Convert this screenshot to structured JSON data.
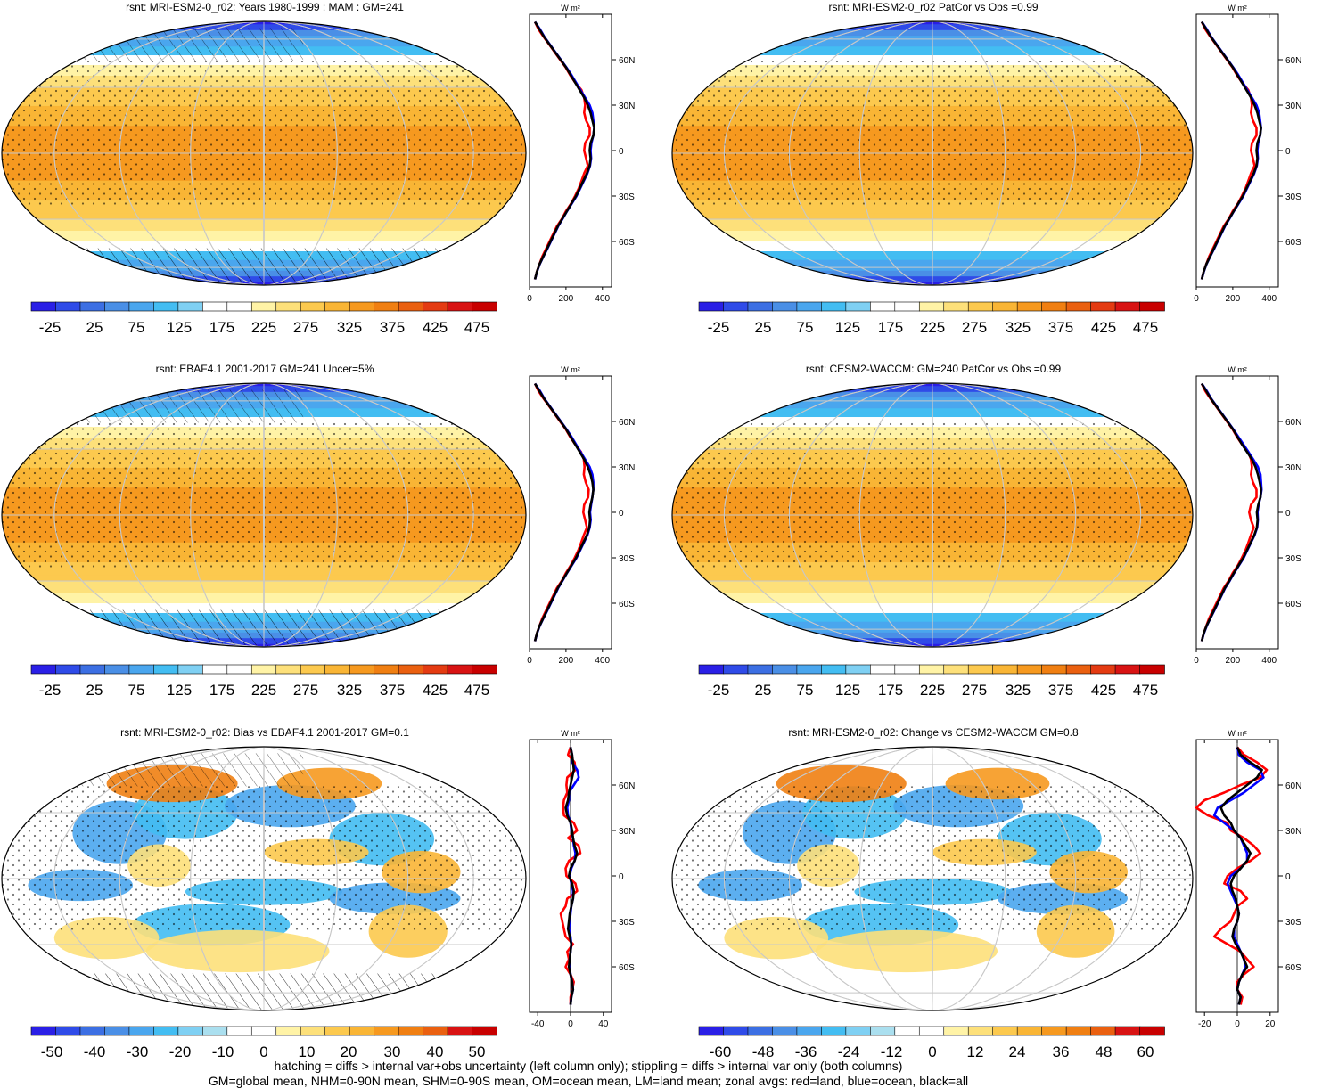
{
  "colors": {
    "clim_scale": [
      "#2a1fe6",
      "#2f4be8",
      "#3c6fe3",
      "#4a8fe6",
      "#4aa6ee",
      "#43bdf2",
      "#7fd0f3",
      "#ffffff",
      "#ffffff",
      "#fff3a6",
      "#fde07a",
      "#fcc94e",
      "#f9b535",
      "#f6991f",
      "#f07f12",
      "#ea6010",
      "#e43b12",
      "#d81313",
      "#c80000"
    ],
    "diff_scale": [
      "#2a1fe6",
      "#2f4be8",
      "#3c6fe3",
      "#4a8fe6",
      "#4aa6ee",
      "#43bdf2",
      "#7fd0f3",
      "#aadfef",
      "#ffffff",
      "#ffffff",
      "#fff3a6",
      "#fde07a",
      "#fcc94e",
      "#f9b535",
      "#f6991f",
      "#f07f12",
      "#ea6010",
      "#d81313",
      "#c80000"
    ],
    "land": "#ff0000",
    "ocean": "#0000ff",
    "all": "#000000"
  },
  "chart_data": [
    {
      "type": "heatmap",
      "id": "p1",
      "title": "rsnt: MRI-ESM2-0_r02: Years 1980-1999 : MAM : GM=241",
      "colorbar_labels": [
        "-25",
        "25",
        "75",
        "125",
        "175",
        "225",
        "275",
        "325",
        "375",
        "425",
        "475"
      ],
      "zonal": {
        "unit": "W m²",
        "xlim": [
          0,
          450
        ],
        "xticks": [
          "0",
          "200",
          "400"
        ],
        "ylim": [
          -90,
          90
        ],
        "yticks": [
          "60N",
          "30N",
          "0",
          "30S",
          "60S"
        ],
        "ytick_values": [
          60,
          30,
          0,
          -30,
          -60
        ],
        "lat": [
          85,
          80,
          75,
          70,
          65,
          60,
          55,
          50,
          45,
          40,
          35,
          30,
          25,
          20,
          15,
          10,
          5,
          0,
          -5,
          -10,
          -15,
          -20,
          -25,
          -30,
          -35,
          -40,
          -45,
          -50,
          -55,
          -60,
          -65,
          -70,
          -75,
          -80,
          -85
        ],
        "all": [
          30,
          55,
          80,
          110,
          140,
          170,
          200,
          225,
          250,
          275,
          300,
          320,
          335,
          345,
          355,
          350,
          335,
          330,
          335,
          330,
          315,
          295,
          275,
          255,
          230,
          205,
          180,
          155,
          135,
          115,
          95,
          75,
          55,
          40,
          30
        ],
        "land": [
          30,
          50,
          78,
          108,
          138,
          168,
          198,
          222,
          250,
          285,
          300,
          305,
          300,
          310,
          330,
          330,
          305,
          300,
          310,
          320,
          300,
          285,
          270,
          250,
          228,
          200,
          178,
          150,
          130,
          110,
          90,
          70,
          55,
          40,
          30
        ],
        "ocean": [
          30,
          58,
          82,
          112,
          142,
          172,
          202,
          230,
          255,
          280,
          305,
          330,
          345,
          350,
          355,
          350,
          340,
          335,
          338,
          332,
          318,
          298,
          278,
          258,
          232,
          206,
          182,
          157,
          137,
          117,
          97,
          76,
          56,
          41,
          30
        ]
      }
    },
    {
      "type": "heatmap",
      "id": "p2",
      "title": "rsnt: MRI-ESM2-0_r02 PatCor vs Obs =0.99",
      "colorbar_labels": [
        "-25",
        "25",
        "75",
        "125",
        "175",
        "225",
        "275",
        "325",
        "375",
        "425",
        "475"
      ],
      "zonal": {
        "unit": "W m²",
        "xlim": [
          0,
          450
        ],
        "xticks": [
          "0",
          "200",
          "400"
        ],
        "ylim": [
          -90,
          90
        ],
        "yticks": [
          "60N",
          "30N",
          "0",
          "30S",
          "60S"
        ],
        "ytick_values": [
          60,
          30,
          0,
          -30,
          -60
        ],
        "lat": [
          85,
          80,
          75,
          70,
          65,
          60,
          55,
          50,
          45,
          40,
          35,
          30,
          25,
          20,
          15,
          10,
          5,
          0,
          -5,
          -10,
          -15,
          -20,
          -25,
          -30,
          -35,
          -40,
          -45,
          -50,
          -55,
          -60,
          -65,
          -70,
          -75,
          -80,
          -85
        ],
        "all": [
          30,
          55,
          80,
          110,
          140,
          170,
          200,
          225,
          250,
          275,
          300,
          320,
          335,
          345,
          355,
          350,
          335,
          330,
          335,
          330,
          315,
          295,
          275,
          255,
          230,
          205,
          180,
          155,
          135,
          115,
          95,
          75,
          55,
          40,
          30
        ],
        "land": [
          30,
          50,
          78,
          108,
          138,
          168,
          198,
          222,
          250,
          285,
          300,
          305,
          300,
          310,
          330,
          330,
          305,
          300,
          310,
          320,
          300,
          285,
          270,
          250,
          228,
          200,
          178,
          150,
          130,
          110,
          90,
          70,
          55,
          40,
          30
        ],
        "ocean": [
          30,
          58,
          82,
          112,
          142,
          172,
          202,
          230,
          255,
          280,
          305,
          330,
          345,
          350,
          355,
          350,
          340,
          335,
          338,
          332,
          318,
          298,
          278,
          258,
          232,
          206,
          182,
          157,
          137,
          117,
          97,
          76,
          56,
          41,
          30
        ]
      }
    },
    {
      "type": "heatmap",
      "id": "p3",
      "title": "rsnt: EBAF4.1 2001-2017 GM=241 Uncer=5%",
      "colorbar_labels": [
        "-25",
        "25",
        "75",
        "125",
        "175",
        "225",
        "275",
        "325",
        "375",
        "425",
        "475"
      ],
      "zonal": {
        "unit": "W m²",
        "xlim": [
          0,
          450
        ],
        "xticks": [
          "0",
          "200",
          "400"
        ],
        "ylim": [
          -90,
          90
        ],
        "yticks": [
          "60N",
          "30N",
          "0",
          "30S",
          "60S"
        ],
        "ytick_values": [
          60,
          30,
          0,
          -30,
          -60
        ],
        "lat": [
          85,
          80,
          75,
          70,
          65,
          60,
          55,
          50,
          45,
          40,
          35,
          30,
          25,
          20,
          15,
          10,
          5,
          0,
          -5,
          -10,
          -15,
          -20,
          -25,
          -30,
          -35,
          -40,
          -45,
          -50,
          -55,
          -60,
          -65,
          -70,
          -75,
          -80,
          -85
        ],
        "all": [
          30,
          55,
          80,
          110,
          140,
          170,
          200,
          225,
          250,
          275,
          300,
          320,
          335,
          345,
          350,
          345,
          335,
          328,
          332,
          328,
          315,
          295,
          275,
          255,
          230,
          205,
          180,
          155,
          135,
          115,
          95,
          75,
          55,
          40,
          30
        ],
        "land": [
          30,
          50,
          78,
          108,
          138,
          168,
          198,
          222,
          250,
          282,
          298,
          302,
          298,
          308,
          325,
          322,
          300,
          295,
          305,
          315,
          298,
          283,
          268,
          248,
          226,
          200,
          178,
          150,
          130,
          110,
          90,
          70,
          55,
          40,
          30
        ],
        "ocean": [
          30,
          58,
          82,
          112,
          142,
          172,
          202,
          230,
          255,
          280,
          305,
          330,
          345,
          350,
          350,
          345,
          338,
          332,
          336,
          330,
          318,
          298,
          278,
          258,
          232,
          206,
          182,
          157,
          137,
          117,
          97,
          76,
          56,
          41,
          30
        ]
      }
    },
    {
      "type": "heatmap",
      "id": "p4",
      "title": "rsnt: CESM2-WACCM: GM=240 PatCor vs Obs =0.99",
      "colorbar_labels": [
        "-25",
        "25",
        "75",
        "125",
        "175",
        "225",
        "275",
        "325",
        "375",
        "425",
        "475"
      ],
      "zonal": {
        "unit": "W m²",
        "xlim": [
          0,
          450
        ],
        "xticks": [
          "0",
          "200",
          "400"
        ],
        "ylim": [
          -90,
          90
        ],
        "yticks": [
          "60N",
          "30N",
          "0",
          "30S",
          "60S"
        ],
        "ytick_values": [
          60,
          30,
          0,
          -30,
          -60
        ],
        "lat": [
          85,
          80,
          75,
          70,
          65,
          60,
          55,
          50,
          45,
          40,
          35,
          30,
          25,
          20,
          15,
          10,
          5,
          0,
          -5,
          -10,
          -15,
          -20,
          -25,
          -30,
          -35,
          -40,
          -45,
          -50,
          -55,
          -60,
          -65,
          -70,
          -75,
          -80,
          -85
        ],
        "all": [
          30,
          55,
          80,
          110,
          140,
          170,
          200,
          225,
          250,
          278,
          305,
          325,
          338,
          348,
          355,
          352,
          340,
          332,
          336,
          332,
          318,
          298,
          278,
          258,
          232,
          206,
          182,
          156,
          136,
          116,
          96,
          76,
          56,
          40,
          30
        ],
        "land": [
          30,
          50,
          78,
          108,
          138,
          168,
          198,
          222,
          250,
          285,
          300,
          305,
          300,
          310,
          330,
          330,
          300,
          290,
          300,
          315,
          300,
          285,
          270,
          250,
          228,
          200,
          178,
          150,
          130,
          110,
          90,
          70,
          55,
          40,
          30
        ],
        "ocean": [
          30,
          58,
          82,
          112,
          142,
          172,
          202,
          230,
          258,
          285,
          312,
          338,
          352,
          355,
          358,
          352,
          342,
          336,
          338,
          334,
          320,
          300,
          280,
          260,
          234,
          208,
          184,
          158,
          138,
          118,
          98,
          77,
          57,
          41,
          30
        ]
      }
    },
    {
      "type": "heatmap",
      "id": "p5",
      "title": "rsnt: MRI-ESM2-0_r02: Bias vs EBAF4.1 2001-2017 GM=0.1",
      "colorbar_labels": [
        "-50",
        "-40",
        "-30",
        "-20",
        "-10",
        "0",
        "10",
        "20",
        "30",
        "40",
        "50"
      ],
      "zonal": {
        "unit": "W m²",
        "xlim": [
          -50,
          50
        ],
        "xticks": [
          "-40",
          "0",
          "40"
        ],
        "ylim": [
          -90,
          90
        ],
        "yticks": [
          "60N",
          "30N",
          "0",
          "30S",
          "60S"
        ],
        "ytick_values": [
          60,
          30,
          0,
          -30,
          -60
        ],
        "lat": [
          85,
          80,
          75,
          70,
          65,
          60,
          55,
          50,
          45,
          40,
          35,
          30,
          25,
          20,
          15,
          10,
          5,
          0,
          -5,
          -10,
          -15,
          -20,
          -25,
          -30,
          -35,
          -40,
          -45,
          -50,
          -55,
          -60,
          -65,
          -70,
          -75,
          -80,
          -85
        ],
        "all": [
          0,
          2,
          3,
          4,
          2,
          0,
          -2,
          -3,
          -6,
          -4,
          0,
          2,
          3,
          5,
          8,
          5,
          0,
          -2,
          2,
          4,
          3,
          1,
          -1,
          -2,
          -3,
          -1,
          1,
          0,
          -1,
          -2,
          0,
          2,
          3,
          1,
          0
        ],
        "land": [
          0,
          -3,
          5,
          6,
          -4,
          -5,
          -4,
          -8,
          -9,
          -8,
          4,
          8,
          -3,
          10,
          12,
          -2,
          -6,
          -5,
          6,
          8,
          -4,
          -6,
          -12,
          -10,
          -8,
          -6,
          3,
          -4,
          -2,
          -6,
          0,
          4,
          2,
          0,
          0
        ],
        "ocean": [
          0,
          2,
          2,
          8,
          10,
          4,
          -2,
          -2,
          -4,
          -3,
          0,
          1,
          3,
          4,
          6,
          5,
          1,
          -1,
          1,
          3,
          3,
          1,
          0,
          -1,
          -2,
          0,
          1,
          0,
          -1,
          -1,
          0,
          2,
          3,
          1,
          0
        ]
      }
    },
    {
      "type": "heatmap",
      "id": "p6",
      "title": "rsnt: MRI-ESM2-0_r02: Change vs CESM2-WACCM GM=0.8",
      "colorbar_labels": [
        "-60",
        "-48",
        "-36",
        "-24",
        "-12",
        "0",
        "12",
        "24",
        "36",
        "48",
        "60"
      ],
      "zonal": {
        "unit": "W m²",
        "xlim": [
          -25,
          25
        ],
        "xticks": [
          "-20",
          "0",
          "20"
        ],
        "ylim": [
          -90,
          90
        ],
        "yticks": [
          "60N",
          "30N",
          "0",
          "30S",
          "60S"
        ],
        "ytick_values": [
          60,
          30,
          0,
          -30,
          -60
        ],
        "lat": [
          85,
          80,
          75,
          70,
          65,
          60,
          55,
          50,
          45,
          40,
          35,
          30,
          25,
          20,
          15,
          10,
          5,
          0,
          -5,
          -10,
          -15,
          -20,
          -25,
          -30,
          -35,
          -40,
          -45,
          -50,
          -55,
          -60,
          -65,
          -70,
          -75,
          -80,
          -85
        ],
        "all": [
          0,
          2,
          8,
          15,
          12,
          6,
          0,
          -6,
          -10,
          -8,
          -4,
          -2,
          2,
          5,
          8,
          6,
          2,
          -2,
          -4,
          -3,
          -1,
          0,
          1,
          0,
          -2,
          -3,
          -1,
          2,
          4,
          6,
          3,
          1,
          0,
          2,
          1
        ],
        "land": [
          0,
          4,
          12,
          18,
          14,
          2,
          -8,
          -20,
          -25,
          -18,
          -6,
          -4,
          4,
          10,
          14,
          8,
          0,
          -6,
          -8,
          2,
          6,
          0,
          -2,
          -4,
          -10,
          -14,
          -6,
          2,
          6,
          10,
          4,
          0,
          0,
          3,
          2
        ],
        "ocean": [
          0,
          1,
          6,
          14,
          16,
          10,
          4,
          -4,
          -12,
          -14,
          -8,
          -2,
          2,
          4,
          6,
          6,
          2,
          -4,
          -6,
          -4,
          -2,
          0,
          1,
          0,
          -2,
          -2,
          0,
          2,
          4,
          5,
          3,
          1,
          0,
          2,
          1
        ]
      }
    }
  ],
  "footer": {
    "line1": "hatching = diffs > internal var+obs uncertainty (left column only); stippling = diffs > internal var only (both columns)",
    "line2": "GM=global mean, NHM=0-90N mean, SHM=0-90S mean, OM=ocean mean, LM=land mean; zonal avgs: red=land, blue=ocean, black=all"
  }
}
